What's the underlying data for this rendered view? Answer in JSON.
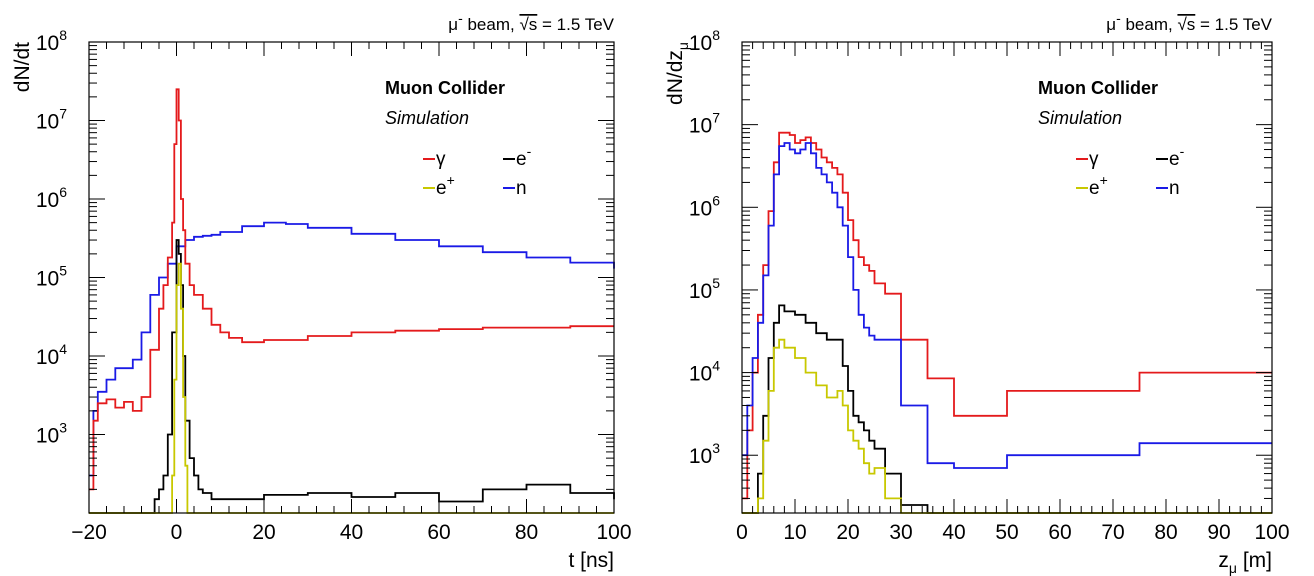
{
  "chart_data": [
    {
      "type": "line",
      "beam_label": {
        "prefix": "μ",
        "sup": "-",
        "mid": " beam, ",
        "root": "√s",
        "suffix": " = 1.5 TeV"
      },
      "experiment": "Muon Collider",
      "status": "Simulation",
      "ylabel": "dN/dt",
      "xlabel": "t [ns]",
      "log_y": true,
      "xlim": [
        -20,
        100
      ],
      "ylim": [
        100,
        100000000
      ],
      "x_ticks": [
        "−20",
        "0",
        "20",
        "40",
        "60",
        "80",
        "100"
      ],
      "x_tick_values": [
        -20,
        0,
        20,
        40,
        60,
        80,
        100
      ],
      "y_tick_values": [
        1000,
        10000,
        100000,
        1000000,
        10000000,
        100000000
      ],
      "y_tick_labels": [
        {
          "base": "10",
          "exp": "3"
        },
        {
          "base": "10",
          "exp": "4"
        },
        {
          "base": "10",
          "exp": "5"
        },
        {
          "base": "10",
          "exp": "6"
        },
        {
          "base": "10",
          "exp": "7"
        },
        {
          "base": "10",
          "exp": "8"
        }
      ],
      "legend": [
        {
          "label": "γ",
          "sup": "",
          "color": "#e41a1c"
        },
        {
          "label": "e",
          "sup": "-",
          "color": "#000000"
        },
        {
          "label": "e",
          "sup": "+",
          "color": "#c8c800"
        },
        {
          "label": "n",
          "sup": "",
          "color": "#1a1ae6"
        }
      ],
      "series": [
        {
          "color": "#1a1ae6",
          "x": [
            -20,
            -19,
            -18,
            -16,
            -14,
            -12,
            -10,
            -8,
            -6,
            -4,
            -2,
            0,
            2,
            4,
            6,
            8,
            10,
            15,
            20,
            25,
            30,
            40,
            50,
            60,
            70,
            80,
            90,
            100
          ],
          "y": [
            300,
            2000,
            3500,
            5000,
            7000,
            7000,
            9000,
            20000,
            60000,
            100000,
            150000,
            250000,
            300000,
            330000,
            340000,
            350000,
            380000,
            450000,
            500000,
            480000,
            430000,
            360000,
            300000,
            250000,
            210000,
            180000,
            155000,
            130000
          ]
        },
        {
          "color": "#e41a1c",
          "x": [
            -20,
            -19,
            -18,
            -16,
            -14,
            -12,
            -10,
            -8,
            -6,
            -4,
            -3,
            -2,
            -1,
            -0.5,
            0,
            0.5,
            1,
            1.5,
            2,
            3,
            4,
            6,
            8,
            10,
            12,
            15,
            20,
            30,
            40,
            50,
            60,
            70,
            80,
            90,
            100
          ],
          "y": [
            200,
            1500,
            2500,
            2800,
            2200,
            2600,
            2000,
            3000,
            12000,
            40000,
            80000,
            180000,
            500000,
            5000000,
            25000000,
            10000000,
            1000000,
            400000,
            150000,
            80000,
            60000,
            40000,
            25000,
            20000,
            17000,
            15000,
            16000,
            18000,
            20000,
            21000,
            22000,
            23000,
            23000,
            24000,
            24000
          ]
        },
        {
          "color": "#000000",
          "x": [
            -20,
            -6,
            -5,
            -4,
            -3,
            -2,
            -1,
            0,
            0.5,
            1,
            1.5,
            2,
            3,
            4,
            5,
            6,
            8,
            10,
            15,
            20,
            30,
            40,
            50,
            60,
            70,
            80,
            90,
            100
          ],
          "y": [
            100,
            100,
            150,
            200,
            300,
            1000,
            20000,
            300000,
            200000,
            80000,
            10000,
            1500,
            500,
            300,
            200,
            180,
            150,
            150,
            150,
            170,
            180,
            160,
            180,
            140,
            200,
            230,
            180,
            150
          ]
        },
        {
          "color": "#c8c800",
          "x": [
            -20,
            -2,
            -1,
            -0.5,
            0,
            0.5,
            1,
            1.5,
            2,
            2.5,
            3,
            100
          ],
          "y": [
            100,
            100,
            300,
            5000,
            80000,
            150000,
            40000,
            3000,
            400,
            100,
            100,
            100
          ]
        }
      ]
    },
    {
      "type": "line",
      "beam_label": {
        "prefix": "μ",
        "sup": "-",
        "mid": " beam, ",
        "root": "√s",
        "suffix": " = 1.5 TeV"
      },
      "experiment": "Muon Collider",
      "status": "Simulation",
      "ylabel": "dN/dz",
      "ylabel_sub": "μ",
      "xlabel": "z",
      "xlabel_sub": "μ",
      "xlabel_unit": " [m]",
      "log_y": true,
      "xlim": [
        0,
        100
      ],
      "ylim": [
        200,
        100000000
      ],
      "x_ticks": [
        "0",
        "10",
        "20",
        "30",
        "40",
        "50",
        "60",
        "70",
        "80",
        "90",
        "100"
      ],
      "x_tick_values": [
        0,
        10,
        20,
        30,
        40,
        50,
        60,
        70,
        80,
        90,
        100
      ],
      "y_tick_values": [
        1000,
        10000,
        100000,
        1000000,
        10000000,
        100000000
      ],
      "y_tick_labels": [
        {
          "base": "10",
          "exp": "3"
        },
        {
          "base": "10",
          "exp": "4"
        },
        {
          "base": "10",
          "exp": "5"
        },
        {
          "base": "10",
          "exp": "6"
        },
        {
          "base": "10",
          "exp": "7"
        },
        {
          "base": "10",
          "exp": "8"
        }
      ],
      "legend": [
        {
          "label": "γ",
          "sup": "",
          "color": "#e41a1c"
        },
        {
          "label": "e",
          "sup": "-",
          "color": "#000000"
        },
        {
          "label": "e",
          "sup": "+",
          "color": "#c8c800"
        },
        {
          "label": "n",
          "sup": "",
          "color": "#1a1ae6"
        }
      ],
      "series": [
        {
          "color": "#e41a1c",
          "x": [
            0,
            1,
            2,
            3,
            4,
            5,
            6,
            7,
            8,
            9,
            10,
            11,
            12,
            13,
            14,
            15,
            16,
            17,
            18,
            19,
            20,
            21,
            22,
            23,
            24,
            25,
            27,
            30,
            35,
            40,
            50,
            75,
            100
          ],
          "y": [
            300,
            2000,
            10000,
            50000,
            200000,
            900000,
            3500000,
            8000000,
            8000000,
            7500000,
            6000000,
            6500000,
            7000000,
            6000000,
            5000000,
            4000000,
            3500000,
            3000000,
            2500000,
            1500000,
            700000,
            400000,
            250000,
            200000,
            170000,
            120000,
            90000,
            25000,
            8500,
            3000,
            6000,
            10000,
            10000
          ]
        },
        {
          "color": "#1a1ae6",
          "x": [
            0,
            1,
            2,
            3,
            4,
            5,
            6,
            7,
            8,
            9,
            10,
            11,
            12,
            13,
            14,
            15,
            16,
            17,
            18,
            19,
            20,
            21,
            22,
            23,
            24,
            25,
            30,
            35,
            40,
            50,
            75,
            100
          ],
          "y": [
            1000,
            4000,
            15000,
            40000,
            150000,
            600000,
            2500000,
            5500000,
            6000000,
            5000000,
            4500000,
            5000000,
            6000000,
            4500000,
            3000000,
            2500000,
            2000000,
            1500000,
            1000000,
            600000,
            250000,
            100000,
            50000,
            35000,
            28000,
            25000,
            4000,
            800,
            700,
            1000,
            1400,
            1400
          ]
        },
        {
          "color": "#000000",
          "x": [
            0,
            2,
            3,
            4,
            5,
            6,
            7,
            8,
            10,
            12,
            14,
            16,
            18,
            19,
            20,
            21,
            22,
            23,
            24,
            25,
            27,
            30,
            35,
            40,
            100
          ],
          "y": [
            200,
            200,
            600,
            3000,
            15000,
            40000,
            65000,
            55000,
            50000,
            40000,
            30000,
            25000,
            25000,
            12000,
            6000,
            3000,
            2500,
            2000,
            1500,
            1200,
            600,
            250,
            200,
            200,
            200
          ]
        },
        {
          "color": "#c8c800",
          "x": [
            0,
            2,
            3,
            4,
            5,
            6,
            7,
            8,
            10,
            12,
            14,
            16,
            18,
            19,
            20,
            21,
            22,
            23,
            24,
            25,
            27,
            30,
            100
          ],
          "y": [
            200,
            200,
            300,
            1500,
            6000,
            20000,
            25000,
            20000,
            15000,
            10000,
            7000,
            5000,
            6000,
            4000,
            2000,
            1500,
            1200,
            800,
            600,
            700,
            300,
            200,
            200
          ]
        }
      ]
    }
  ]
}
